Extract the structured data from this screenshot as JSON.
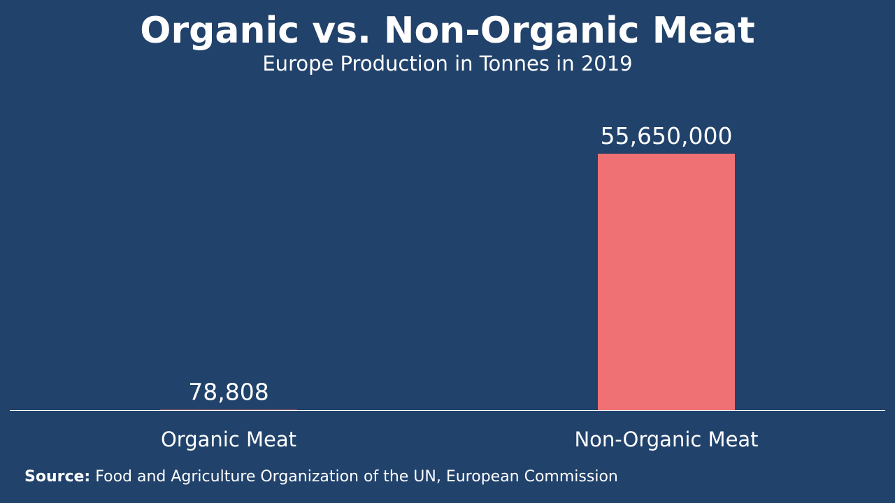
{
  "colors": {
    "background": "#21426b",
    "bar": "#f07174",
    "text": "#ffffff",
    "axis": "#ffffff"
  },
  "chart_data": {
    "type": "bar",
    "title": "Organic vs. Non-Organic Meat",
    "subtitle": "Europe Production in Tonnes in 2019",
    "categories": [
      "Organic Meat",
      "Non-Organic Meat"
    ],
    "values": [
      78808,
      55650000
    ],
    "data_labels": [
      "78,808",
      "55,650,000"
    ],
    "ylim": [
      0,
      55650000
    ],
    "grid": false,
    "legend": "none"
  },
  "source": {
    "label": "Source:",
    "text": "Food and Agriculture Organization of the UN, European Commission"
  }
}
